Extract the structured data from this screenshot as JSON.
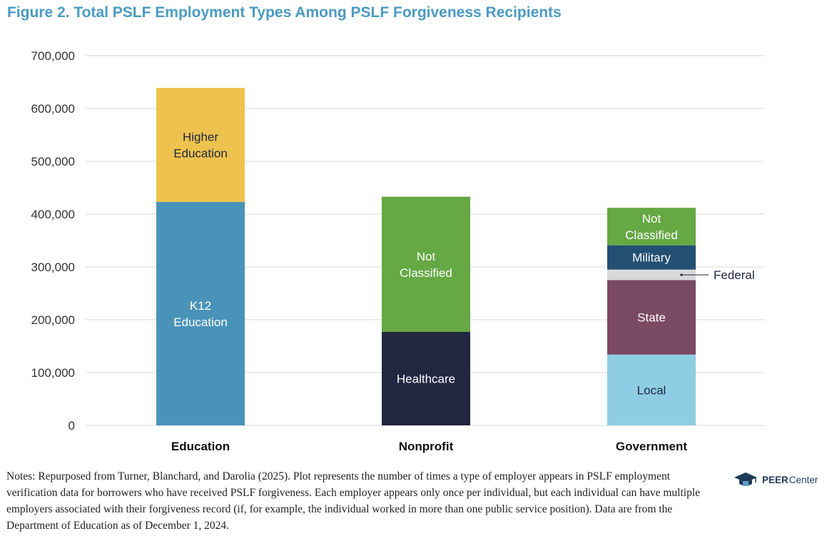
{
  "figure": {
    "title": "Figure 2. Total PSLF Employment Types Among PSLF Forgiveness Recipients",
    "notes": "Notes: Repurposed from Turner, Blanchard, and Darolia (2025). Plot represents the number of times a type of employer appears in PSLF employment verification data for borrowers who have received PSLF forgiveness. Each employer appears only once per individual, but each individual can have multiple employers associated with their forgiveness record (if, for example, the individual worked in more than one public service position). Data are from the Department of Education as of December 1, 2024."
  },
  "logo": {
    "brand": "PEER",
    "sub": "Center",
    "icon": "graduation-cap-icon"
  },
  "chart_data": {
    "type": "bar",
    "stacked": true,
    "title": "Figure 2. Total PSLF Employment Types Among PSLF Forgiveness Recipients",
    "xlabel": "",
    "ylabel": "",
    "ylim": [
      0,
      700000
    ],
    "yticks": [
      0,
      100000,
      200000,
      300000,
      400000,
      500000,
      600000,
      700000
    ],
    "ytick_labels": [
      "0",
      "100,000",
      "200,000",
      "300,000",
      "400,000",
      "500,000",
      "600,000",
      "700,000"
    ],
    "grid": true,
    "categories": [
      "Education",
      "Nonprofit",
      "Government"
    ],
    "bars": [
      {
        "category": "Education",
        "segments": [
          {
            "name": "K12 Education",
            "label": [
              "K12",
              "Education"
            ],
            "value": 423000,
            "color": "#4a93b8",
            "text_color": "#ffffff"
          },
          {
            "name": "Higher Education",
            "label": [
              "Higher",
              "Education"
            ],
            "value": 216000,
            "color": "#eec24e",
            "text_color": "#1e2540"
          }
        ]
      },
      {
        "category": "Nonprofit",
        "segments": [
          {
            "name": "Healthcare",
            "label": [
              "Healthcare"
            ],
            "value": 177000,
            "color": "#222641",
            "text_color": "#ffffff"
          },
          {
            "name": "Not Classified",
            "label": [
              "Not",
              "Classified"
            ],
            "value": 256000,
            "color": "#65a844",
            "text_color": "#ffffff"
          }
        ]
      },
      {
        "category": "Government",
        "segments": [
          {
            "name": "Local",
            "label": [
              "Local"
            ],
            "value": 134000,
            "color": "#8ecde3",
            "text_color": "#1e2540"
          },
          {
            "name": "State",
            "label": [
              "State"
            ],
            "value": 141000,
            "color": "#7a4a62",
            "text_color": "#ffffff"
          },
          {
            "name": "Federal",
            "label": [
              "Federal"
            ],
            "value": 20000,
            "color": "#d9d9d9",
            "text_color": "#1e2540",
            "callout": true
          },
          {
            "name": "Military",
            "label": [
              "Military"
            ],
            "value": 46000,
            "color": "#234f72",
            "text_color": "#ffffff"
          },
          {
            "name": "Not Classified",
            "label": [
              "Not",
              "Classified"
            ],
            "value": 71000,
            "color": "#65a844",
            "text_color": "#ffffff"
          }
        ]
      }
    ]
  }
}
